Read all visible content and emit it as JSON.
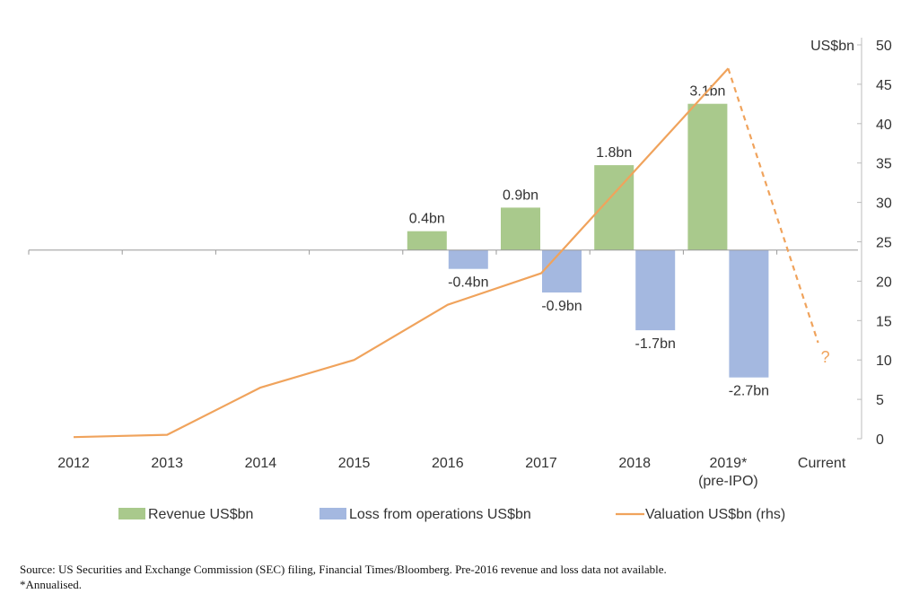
{
  "chart_data": {
    "type": "bar+line",
    "categories": [
      "2012",
      "2013",
      "2014",
      "2015",
      "2016",
      "2017",
      "2018",
      "2019*",
      "Current"
    ],
    "category_sublabels": [
      "",
      "",
      "",
      "",
      "",
      "",
      "",
      "(pre-IPO)",
      ""
    ],
    "series": [
      {
        "name": "Revenue US$bn",
        "type": "bar",
        "axis": "left",
        "color": "#a9c98c",
        "values": [
          null,
          null,
          null,
          null,
          0.4,
          0.9,
          1.8,
          3.1,
          null
        ],
        "labels": [
          "",
          "",
          "",
          "",
          "0.4bn",
          "0.9bn",
          "1.8bn",
          "3.1bn",
          ""
        ]
      },
      {
        "name": "Loss from operations US$bn",
        "type": "bar",
        "axis": "left",
        "color": "#a4b8e0",
        "values": [
          null,
          null,
          null,
          null,
          -0.4,
          -0.9,
          -1.7,
          -2.7,
          null
        ],
        "labels": [
          "",
          "",
          "",
          "",
          "-0.4bn",
          "-0.9bn",
          "-1.7bn",
          "-2.7bn",
          ""
        ]
      },
      {
        "name": "Valuation US$bn (rhs)",
        "type": "line",
        "axis": "right",
        "color": "#f0a35c",
        "values": [
          0.2,
          0.5,
          6.5,
          10,
          17,
          21,
          34,
          47,
          11.5
        ],
        "dashed_last_segment": true,
        "end_annotation": "?"
      }
    ],
    "right_axis": {
      "title": "US$bn",
      "ticks": [
        "0",
        "5",
        "10",
        "15",
        "20",
        "25",
        "30",
        "35",
        "40",
        "45",
        "50"
      ],
      "ylim": [
        0,
        50
      ]
    },
    "left_axis": {
      "ylim": [
        -4.0,
        4.35
      ],
      "visible": false
    },
    "legend": {
      "position": "bottom"
    },
    "grid": false
  },
  "footer": {
    "source": "Source: US Securities and Exchange Commission (SEC) filing, Financial Times/Bloomberg. Pre-2016 revenue and loss data not available.",
    "note": "*Annualised."
  }
}
